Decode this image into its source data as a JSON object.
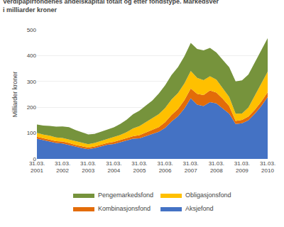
{
  "chart_data": {
    "type": "area",
    "stacked": true,
    "title": "Verdipapirfondenes andelskapital totalt og etter fondstype. Markedsver",
    "subtitle": "i milliarder kroner",
    "ylabel": "Milliarder kroner",
    "categories": [
      "31.03.\n2001",
      null,
      null,
      null,
      "31.03.\n2002",
      null,
      null,
      null,
      "31.03.\n2003",
      null,
      null,
      null,
      "31.03.\n2004",
      null,
      null,
      null,
      "31.03.\n2005",
      null,
      null,
      null,
      "31.03.\n2006",
      null,
      null,
      null,
      "31.03.\n2007",
      null,
      null,
      null,
      "31.03.\n2008",
      null,
      null,
      null,
      "31.03.\n2009",
      null,
      null,
      null,
      "31.03.\n2010"
    ],
    "series": [
      {
        "name": "Aksjefond",
        "color": "#4472C4",
        "values": [
          78,
          72,
          68,
          62,
          60,
          55,
          48,
          42,
          38,
          42,
          48,
          55,
          58,
          65,
          70,
          78,
          80,
          88,
          95,
          105,
          120,
          145,
          165,
          195,
          235,
          210,
          205,
          220,
          215,
          195,
          175,
          135,
          138,
          150,
          175,
          205,
          240
        ]
      },
      {
        "name": "Kombinasjonsfond",
        "color": "#E36C09",
        "values": [
          8,
          8,
          8,
          7,
          7,
          7,
          6,
          6,
          6,
          6,
          7,
          7,
          8,
          8,
          9,
          10,
          12,
          14,
          16,
          18,
          22,
          25,
          28,
          32,
          38,
          42,
          42,
          45,
          42,
          38,
          30,
          12,
          13,
          14,
          15,
          17,
          18
        ]
      },
      {
        "name": "Obligasjonsfond",
        "color": "#FFC000",
        "values": [
          15,
          14,
          14,
          14,
          14,
          13,
          13,
          13,
          13,
          14,
          15,
          16,
          18,
          20,
          25,
          30,
          35,
          40,
          45,
          50,
          55,
          60,
          62,
          65,
          68,
          62,
          58,
          55,
          50,
          42,
          35,
          28,
          25,
          35,
          55,
          70,
          80
        ]
      },
      {
        "name": "Pengemarkedsfond",
        "color": "#76933C",
        "values": [
          32,
          35,
          38,
          42,
          45,
          48,
          45,
          42,
          38,
          35,
          35,
          36,
          38,
          42,
          48,
          55,
          60,
          65,
          70,
          80,
          88,
          95,
          100,
          105,
          108,
          112,
          115,
          110,
          105,
          108,
          115,
          125,
          128,
          128,
          128,
          130,
          130
        ]
      }
    ],
    "ylim": [
      0,
      500
    ],
    "yticks": [
      0,
      100,
      200,
      300,
      400,
      500
    ],
    "grid": true,
    "legend": "bottom"
  }
}
